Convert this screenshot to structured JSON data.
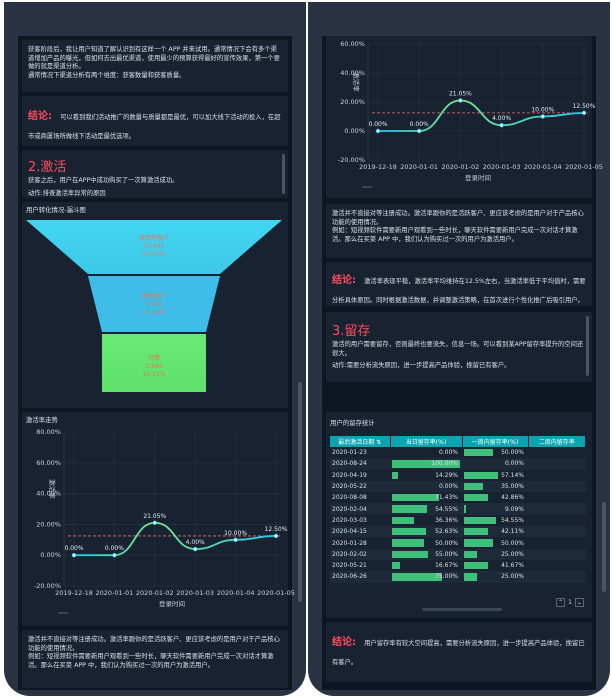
{
  "left": {
    "intro_text": "获客阶段后，我让用户知道了解认识到有这样一个 APP 并来试用。通常情况下会有多个渠道增加产品的曝光，但如何去出最优渠道，使用最少的预算获得最好的宣传效果，第一个要做的就是渠道分析。",
    "intro_text2": "通常情况下渠道分析有两个维度：获客数量和获客质量。",
    "conclusion_label": "结论:",
    "conclusion_text": "可以看到我们活动推广的数量与质量都是最优，可以加大线下活动的投入，在超市或商厦场所做线下活动是最优选项。",
    "activation_title": "2.激活",
    "activation_desc": "获客之后，用户在APP中成功购买了一次算激活成功。",
    "activation_action": "动作:排查激活率异常的原因",
    "funnel_title": "用户转化情况-漏斗图",
    "funnel": [
      {
        "name": "激活新客户",
        "count": "10,642",
        "rate": "53.23%"
      },
      {
        "name": "激活用户",
        "count": "5,520",
        "rate": "27.56%"
      },
      {
        "name": "付费",
        "count": "3,844",
        "rate": "19.23%"
      }
    ],
    "line_title": "激活率走势",
    "bottom_text": "激活并不直接对等注册成功。激活率跟你的是活跃客户、更应该考虑的是用户对于产品核心功能的使用情况。",
    "bottom_text2": "例如：短视频软件需要新用户观看到一些时长，聊天软件需要新用户完成一次对话才算激活。那么在买菜 APP 中，我们认为购买过一次的用户为激活用户。"
  },
  "right": {
    "analysis_text": "激活并不直接对等注册成功。激活率跟你的是活跃客户、更应该考虑的是用户对于产品核心功能的使用情况。",
    "analysis_text2": "例如：短视频软件需要新用户观看到一些时长，聊天软件需要新用户完成一次对话才算激活。那么在买菜 APP 中，我们认为购买过一次的用户为激活用户。",
    "conclusion_label": "结论:",
    "conclusion_text": "激活率表现平稳，激活率平均维持在12.5%左右，当激活率低于平均值时，需要分析具体原因。同时根据激活数据，并调整激活策略，在首次进行个性化推广后吸引用户。",
    "retention_title": "3.留存",
    "retention_desc": "激活的用户需要留存，否则最终也要流失，信息一场。可以看到某APP留存率提升的空间还很大。",
    "retention_action": "动作:需要分析流失原因，进一步提高产品体验，挽留已有客户。",
    "table_title": "用户的留存统计",
    "table_headers": [
      "最后激活日期",
      "当日留存率(%)",
      "一周内留存率(%)",
      "二周内留存率"
    ],
    "table_rows": [
      {
        "date": "2020-01-23",
        "d1": "0.00%",
        "d1v": 0.0,
        "w1": "50.00%",
        "w1v": 0.5
      },
      {
        "date": "2020-08-24",
        "d1": "100.00%",
        "d1v": 1.0,
        "w1": "0.00%",
        "w1v": 0.0
      },
      {
        "date": "2020-04-19",
        "d1": "14.29%",
        "d1v": 0.1429,
        "w1": "57.14%",
        "w1v": 0.5714
      },
      {
        "date": "2020-05-22",
        "d1": "0.00%",
        "d1v": 0.0,
        "w1": "35.00%",
        "w1v": 0.35
      },
      {
        "date": "2020-08-08",
        "d1": "71.43%",
        "d1v": 0.7143,
        "w1": "42.86%",
        "w1v": 0.4286
      },
      {
        "date": "2020-02-04",
        "d1": "54.55%",
        "d1v": 0.5455,
        "w1": "9.09%",
        "w1v": 0.0909
      },
      {
        "date": "2020-03-03",
        "d1": "36.36%",
        "d1v": 0.3636,
        "w1": "54.55%",
        "w1v": 0.5455
      },
      {
        "date": "2020-04-15",
        "d1": "52.63%",
        "d1v": 0.5263,
        "w1": "42.11%",
        "w1v": 0.4211
      },
      {
        "date": "2020-01-28",
        "d1": "50.00%",
        "d1v": 0.5,
        "w1": "50.00%",
        "w1v": 0.5
      },
      {
        "date": "2020-02-02",
        "d1": "55.00%",
        "d1v": 0.55,
        "w1": "25.00%",
        "w1v": 0.25
      },
      {
        "date": "2020-05-21",
        "d1": "16.67%",
        "d1v": 0.1667,
        "w1": "41.67%",
        "w1v": 0.4167
      },
      {
        "date": "2020-06-26",
        "d1": "75.00%",
        "d1v": 0.75,
        "w1": "25.00%",
        "w1v": 0.25
      }
    ],
    "pager_value": "1",
    "final_label": "结论:",
    "final_text": "用户留存率有较大空间提高，需要分析流失原因，进一步提高产品体验，挽留已有客户。"
  },
  "colors": {
    "accent_red": "#ff4d5e",
    "teal": "#0aa5b0",
    "green_bar": "#3fbf7a",
    "line_start": "#1ec9f0",
    "line_end": "#7be88a",
    "mean_line": "#e8707a"
  },
  "chart_data": {
    "type": "line",
    "title": "",
    "xlabel": "登录时间",
    "ylabel": "激活率",
    "categories": [
      "2019-12-18",
      "2020-01-01",
      "2020-01-02",
      "2020-01-03",
      "2020-01-04",
      "2020-01-05"
    ],
    "values": [
      0.0,
      0.0,
      21.05,
      4.0,
      10.0,
      12.5
    ],
    "value_labels": [
      "0.00%",
      "0.00%",
      "21.05%",
      "4.00%",
      "10.00%",
      "12.50%"
    ],
    "mean_line": 12.5,
    "yticks": [
      "80.00%",
      "60.00%",
      "40.00%",
      "20.00%",
      "0.00%",
      "-20.00%"
    ],
    "yticks_right": [
      "60.00%",
      "40.00%",
      "20.00%",
      "0.00%",
      "-20.00%"
    ],
    "ylim": [
      -20,
      80
    ],
    "grid": true
  }
}
